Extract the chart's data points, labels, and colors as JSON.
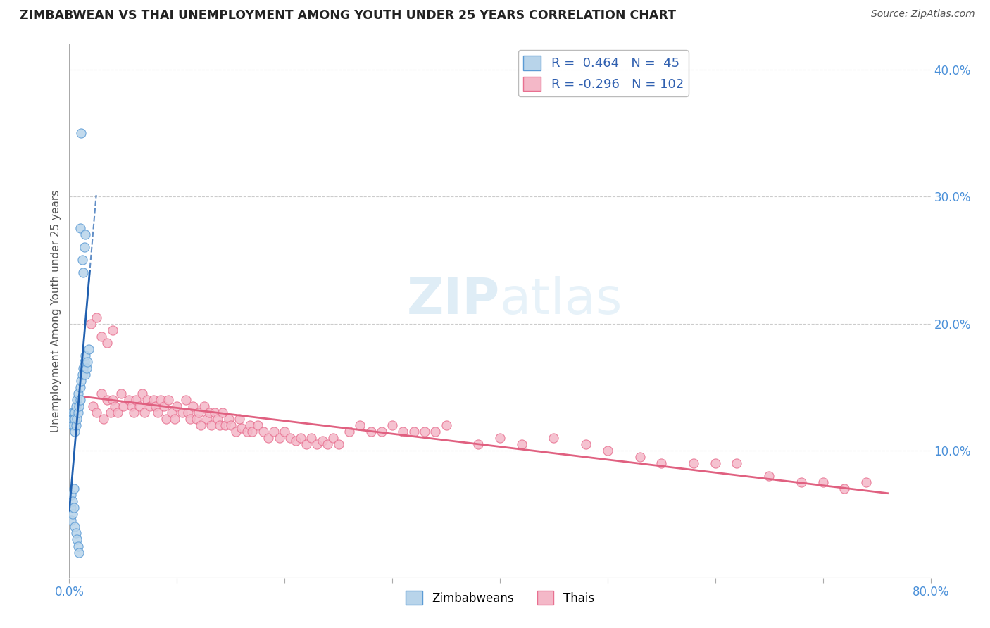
{
  "title": "ZIMBABWEAN VS THAI UNEMPLOYMENT AMONG YOUTH UNDER 25 YEARS CORRELATION CHART",
  "source": "Source: ZipAtlas.com",
  "ylabel": "Unemployment Among Youth under 25 years",
  "r_zimbabwe": 0.464,
  "n_zimbabwe": 45,
  "r_thai": -0.296,
  "n_thai": 102,
  "xlim": [
    0.0,
    0.8
  ],
  "ylim": [
    0.0,
    0.42
  ],
  "y_ticks_right": [
    0.1,
    0.2,
    0.3,
    0.4
  ],
  "y_tick_labels_right": [
    "10.0%",
    "20.0%",
    "30.0%",
    "40.0%"
  ],
  "color_zimbabwe_fill": "#b8d4ea",
  "color_zimbabwe_edge": "#5b9bd5",
  "color_thai_fill": "#f4b8c8",
  "color_thai_edge": "#e87090",
  "color_zimbabwe_line": "#2060b0",
  "color_thai_line": "#e06080",
  "color_title": "#222222",
  "color_source": "#555555",
  "zimbabwe_x": [
    0.003,
    0.003,
    0.003,
    0.004,
    0.004,
    0.004,
    0.005,
    0.005,
    0.005,
    0.006,
    0.006,
    0.007,
    0.007,
    0.008,
    0.008,
    0.009,
    0.01,
    0.01,
    0.011,
    0.012,
    0.013,
    0.014,
    0.015,
    0.015,
    0.016,
    0.017,
    0.018,
    0.002,
    0.002,
    0.002,
    0.003,
    0.003,
    0.004,
    0.004,
    0.005,
    0.006,
    0.007,
    0.008,
    0.009,
    0.01,
    0.011,
    0.012,
    0.013,
    0.014,
    0.015
  ],
  "zimbabwe_y": [
    0.13,
    0.125,
    0.12,
    0.13,
    0.125,
    0.12,
    0.13,
    0.125,
    0.115,
    0.135,
    0.12,
    0.14,
    0.125,
    0.145,
    0.13,
    0.135,
    0.15,
    0.14,
    0.155,
    0.16,
    0.165,
    0.17,
    0.175,
    0.16,
    0.165,
    0.17,
    0.18,
    0.065,
    0.055,
    0.045,
    0.06,
    0.05,
    0.07,
    0.055,
    0.04,
    0.035,
    0.03,
    0.025,
    0.02,
    0.275,
    0.35,
    0.25,
    0.24,
    0.26,
    0.27
  ],
  "thai_x": [
    0.022,
    0.025,
    0.03,
    0.032,
    0.035,
    0.038,
    0.04,
    0.042,
    0.045,
    0.048,
    0.05,
    0.055,
    0.058,
    0.06,
    0.062,
    0.065,
    0.068,
    0.07,
    0.072,
    0.075,
    0.078,
    0.08,
    0.082,
    0.085,
    0.088,
    0.09,
    0.092,
    0.095,
    0.098,
    0.1,
    0.105,
    0.108,
    0.11,
    0.112,
    0.115,
    0.118,
    0.12,
    0.122,
    0.125,
    0.128,
    0.13,
    0.132,
    0.135,
    0.138,
    0.14,
    0.142,
    0.145,
    0.148,
    0.15,
    0.155,
    0.158,
    0.16,
    0.165,
    0.168,
    0.17,
    0.175,
    0.18,
    0.185,
    0.19,
    0.195,
    0.2,
    0.205,
    0.21,
    0.215,
    0.22,
    0.225,
    0.23,
    0.235,
    0.24,
    0.245,
    0.25,
    0.26,
    0.27,
    0.28,
    0.29,
    0.3,
    0.31,
    0.32,
    0.33,
    0.34,
    0.35,
    0.38,
    0.4,
    0.42,
    0.45,
    0.48,
    0.5,
    0.53,
    0.55,
    0.58,
    0.6,
    0.62,
    0.65,
    0.68,
    0.7,
    0.72,
    0.74,
    0.02,
    0.025,
    0.03,
    0.035,
    0.04
  ],
  "thai_y": [
    0.135,
    0.13,
    0.145,
    0.125,
    0.14,
    0.13,
    0.14,
    0.135,
    0.13,
    0.145,
    0.135,
    0.14,
    0.135,
    0.13,
    0.14,
    0.135,
    0.145,
    0.13,
    0.14,
    0.135,
    0.14,
    0.135,
    0.13,
    0.14,
    0.135,
    0.125,
    0.14,
    0.13,
    0.125,
    0.135,
    0.13,
    0.14,
    0.13,
    0.125,
    0.135,
    0.125,
    0.13,
    0.12,
    0.135,
    0.125,
    0.13,
    0.12,
    0.13,
    0.125,
    0.12,
    0.13,
    0.12,
    0.125,
    0.12,
    0.115,
    0.125,
    0.118,
    0.115,
    0.12,
    0.115,
    0.12,
    0.115,
    0.11,
    0.115,
    0.11,
    0.115,
    0.11,
    0.108,
    0.11,
    0.105,
    0.11,
    0.105,
    0.108,
    0.105,
    0.11,
    0.105,
    0.115,
    0.12,
    0.115,
    0.115,
    0.12,
    0.115,
    0.115,
    0.115,
    0.115,
    0.12,
    0.105,
    0.11,
    0.105,
    0.11,
    0.105,
    0.1,
    0.095,
    0.09,
    0.09,
    0.09,
    0.09,
    0.08,
    0.075,
    0.075,
    0.07,
    0.075,
    0.2,
    0.205,
    0.19,
    0.185,
    0.195
  ]
}
